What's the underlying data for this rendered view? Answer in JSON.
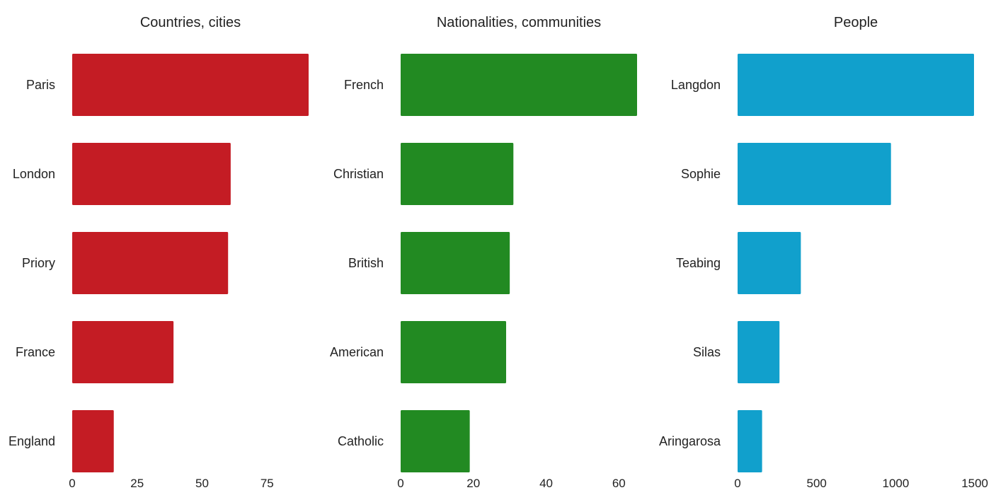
{
  "chart_data": [
    {
      "type": "bar",
      "orientation": "horizontal",
      "title": "Countries, cities",
      "categories": [
        "Paris",
        "London",
        "Priory",
        "France",
        "England"
      ],
      "values": [
        91,
        61,
        60,
        39,
        16
      ],
      "xlim": [
        0,
        91
      ],
      "xticks": [
        0,
        25,
        50,
        75
      ],
      "xlabel": "",
      "ylabel": "",
      "color": "#c41c24",
      "grid": false,
      "legend": "none"
    },
    {
      "type": "bar",
      "orientation": "horizontal",
      "title": "Nationalities, communities",
      "categories": [
        "French",
        "Christian",
        "British",
        "American",
        "Catholic"
      ],
      "values": [
        65,
        31,
        30,
        29,
        19
      ],
      "xlim": [
        0,
        65
      ],
      "xticks": [
        0,
        20,
        40,
        60
      ],
      "xlabel": "",
      "ylabel": "",
      "color": "#228a22",
      "grid": false,
      "legend": "none"
    },
    {
      "type": "bar",
      "orientation": "horizontal",
      "title": "People",
      "categories": [
        "Langdon",
        "Sophie",
        "Teabing",
        "Silas",
        "Aringarosa"
      ],
      "values": [
        1495,
        970,
        400,
        265,
        155
      ],
      "xlim": [
        0,
        1495
      ],
      "xticks": [
        0,
        500,
        1000,
        1500
      ],
      "xlabel": "",
      "ylabel": "",
      "color": "#11a0cc",
      "grid": false,
      "legend": "none"
    }
  ]
}
